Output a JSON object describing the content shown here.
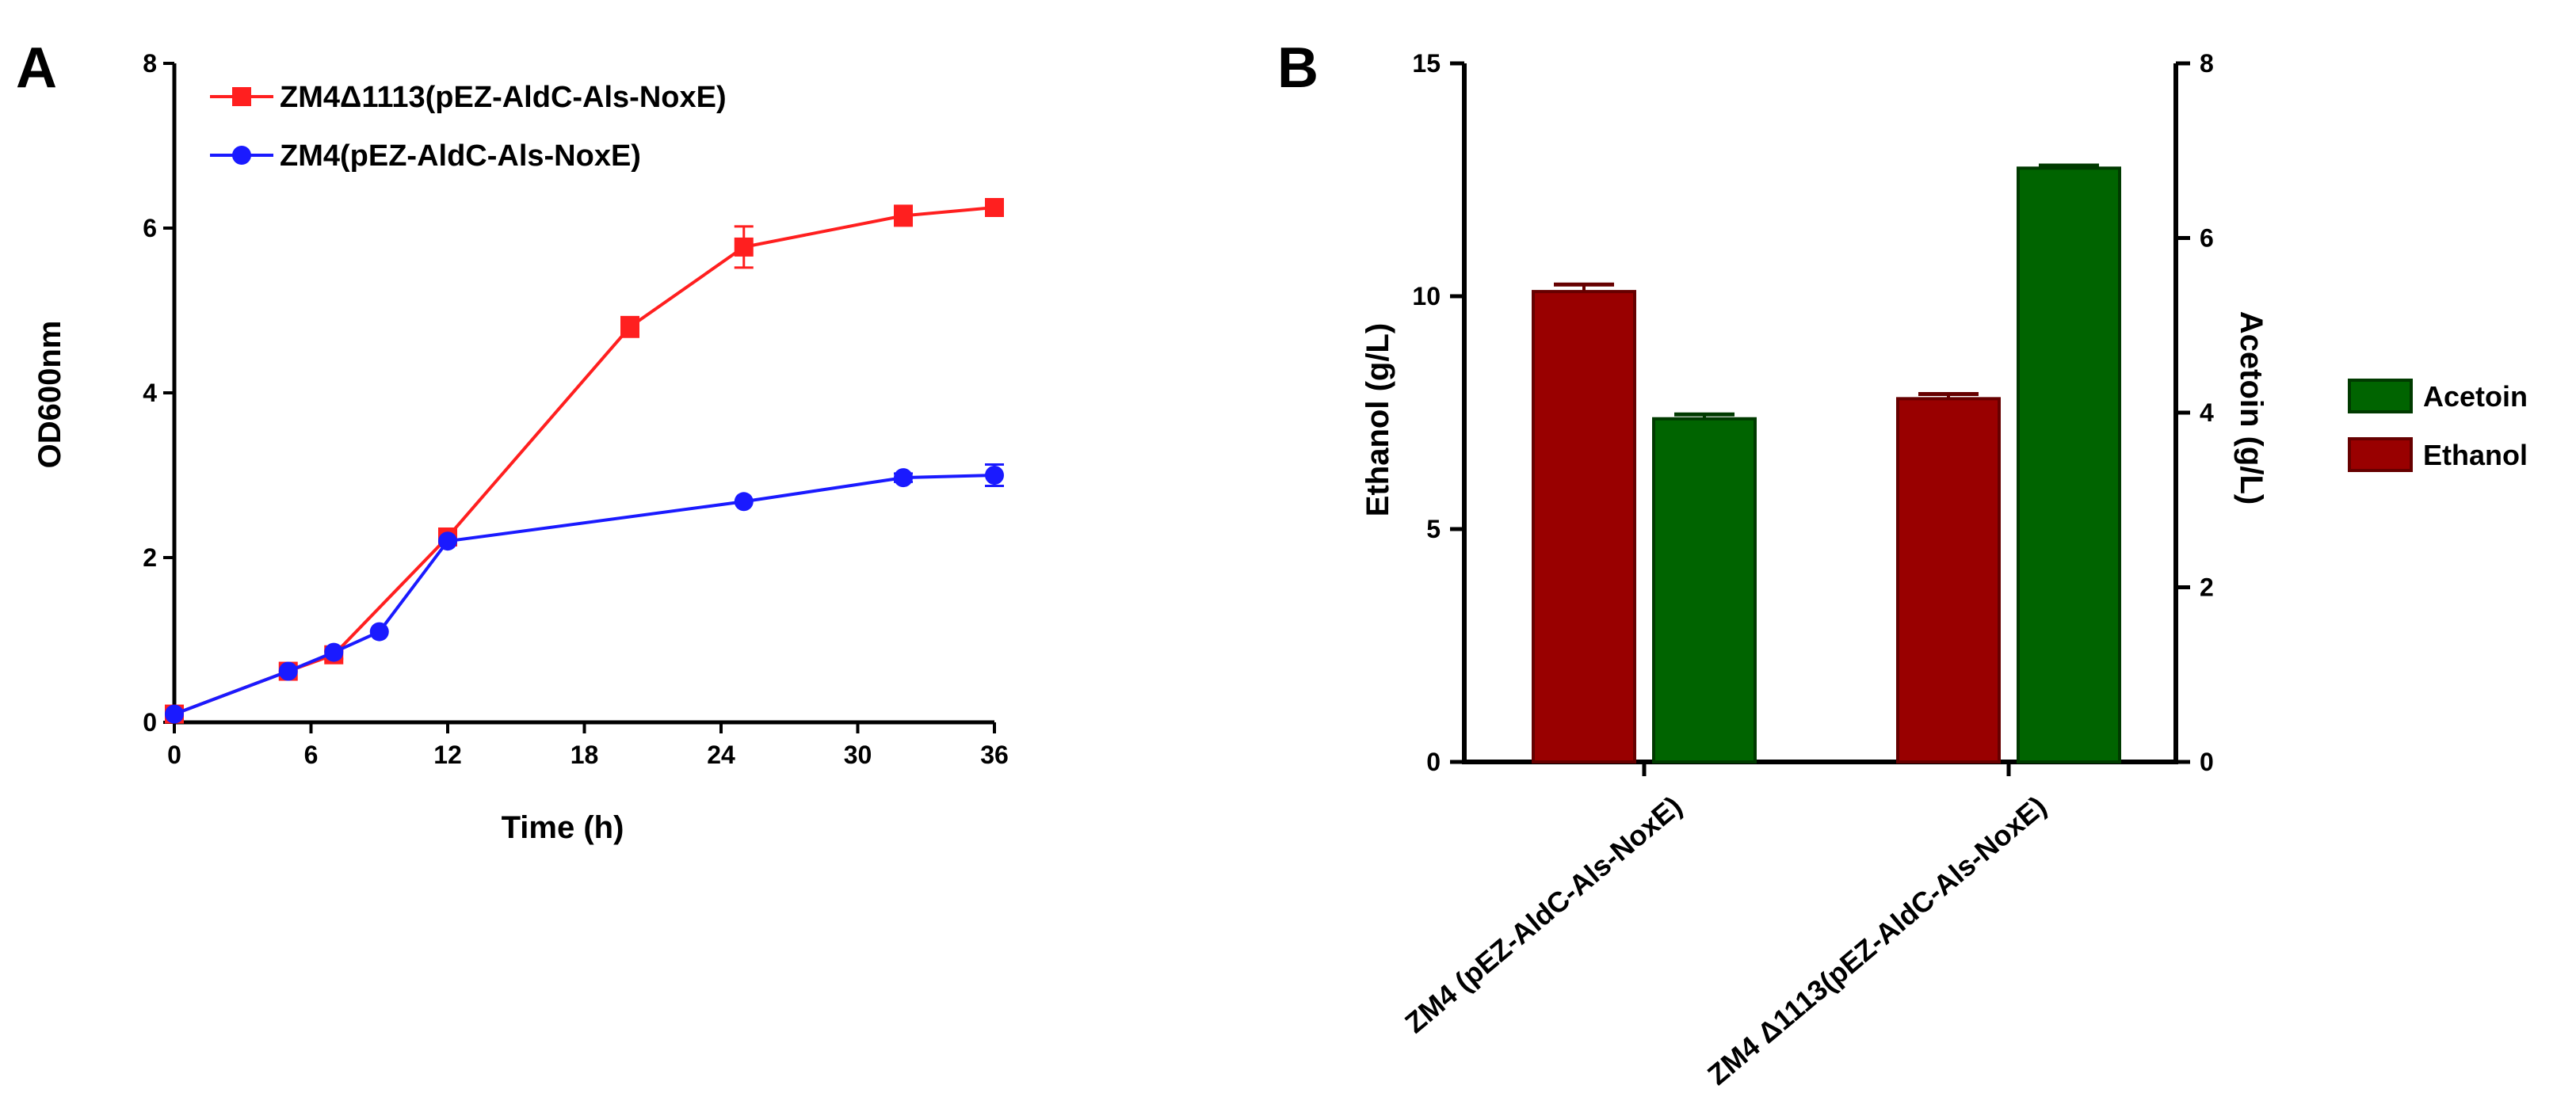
{
  "chart_data": [
    {
      "type": "line",
      "panel_label": "A",
      "title": "",
      "xlabel": "Time (h)",
      "ylabel": "OD600nm",
      "xlim": [
        0,
        36
      ],
      "ylim": [
        0,
        8
      ],
      "xticks": [
        0,
        6,
        12,
        18,
        24,
        30,
        36
      ],
      "yticks": [
        0,
        2,
        4,
        6,
        8
      ],
      "grid": false,
      "legend_position": "top-left",
      "series": [
        {
          "name": "ZM4Δ1113(pEZ-AldC-Als-NoxE)",
          "color": "#ff1f1f",
          "marker": "square",
          "x": [
            0,
            5,
            7,
            12,
            20,
            25,
            32,
            36
          ],
          "y": [
            0.1,
            0.62,
            0.82,
            2.25,
            4.8,
            5.77,
            6.15,
            6.25
          ],
          "err": [
            0.02,
            0.03,
            0.05,
            0.05,
            0.12,
            0.25,
            0.12,
            0.07
          ]
        },
        {
          "name": "ZM4(pEZ-AldC-Als-NoxE)",
          "color": "#1a1aff",
          "marker": "circle",
          "x": [
            0,
            5,
            7,
            9,
            12,
            25,
            32,
            36
          ],
          "y": [
            0.1,
            0.62,
            0.85,
            1.1,
            2.2,
            2.68,
            2.97,
            3.0
          ],
          "err": [
            0.02,
            0.03,
            0.03,
            0.04,
            0.04,
            0.04,
            0.05,
            0.13
          ]
        }
      ]
    },
    {
      "type": "bar",
      "panel_label": "B",
      "title": "",
      "xlabel": "",
      "ylabel_left": "Ethanol (g/L)",
      "ylabel_right": "Acetoin (g/L)",
      "ylim_left": [
        0,
        15
      ],
      "ylim_right": [
        0,
        8
      ],
      "yticks_left": [
        0,
        5,
        10,
        15
      ],
      "yticks_right": [
        0,
        2,
        4,
        6,
        8
      ],
      "grid": false,
      "legend_position": "right",
      "categories": [
        "ZM4 (pEZ-AldC-Als-NoxE)",
        "ZM4 Δ1113(pEZ-AldC-Als-NoxE)"
      ],
      "series": [
        {
          "name": "Ethanol",
          "axis": "left",
          "color": "#990000",
          "values": [
            10.1,
            7.8
          ],
          "err": [
            0.15,
            0.1
          ]
        },
        {
          "name": "Acetoin",
          "axis": "right",
          "color": "#006400",
          "values": [
            3.93,
            6.8
          ],
          "err": [
            0.05,
            0.03
          ]
        }
      ],
      "legend_order": [
        "Acetoin",
        "Ethanol"
      ]
    }
  ]
}
